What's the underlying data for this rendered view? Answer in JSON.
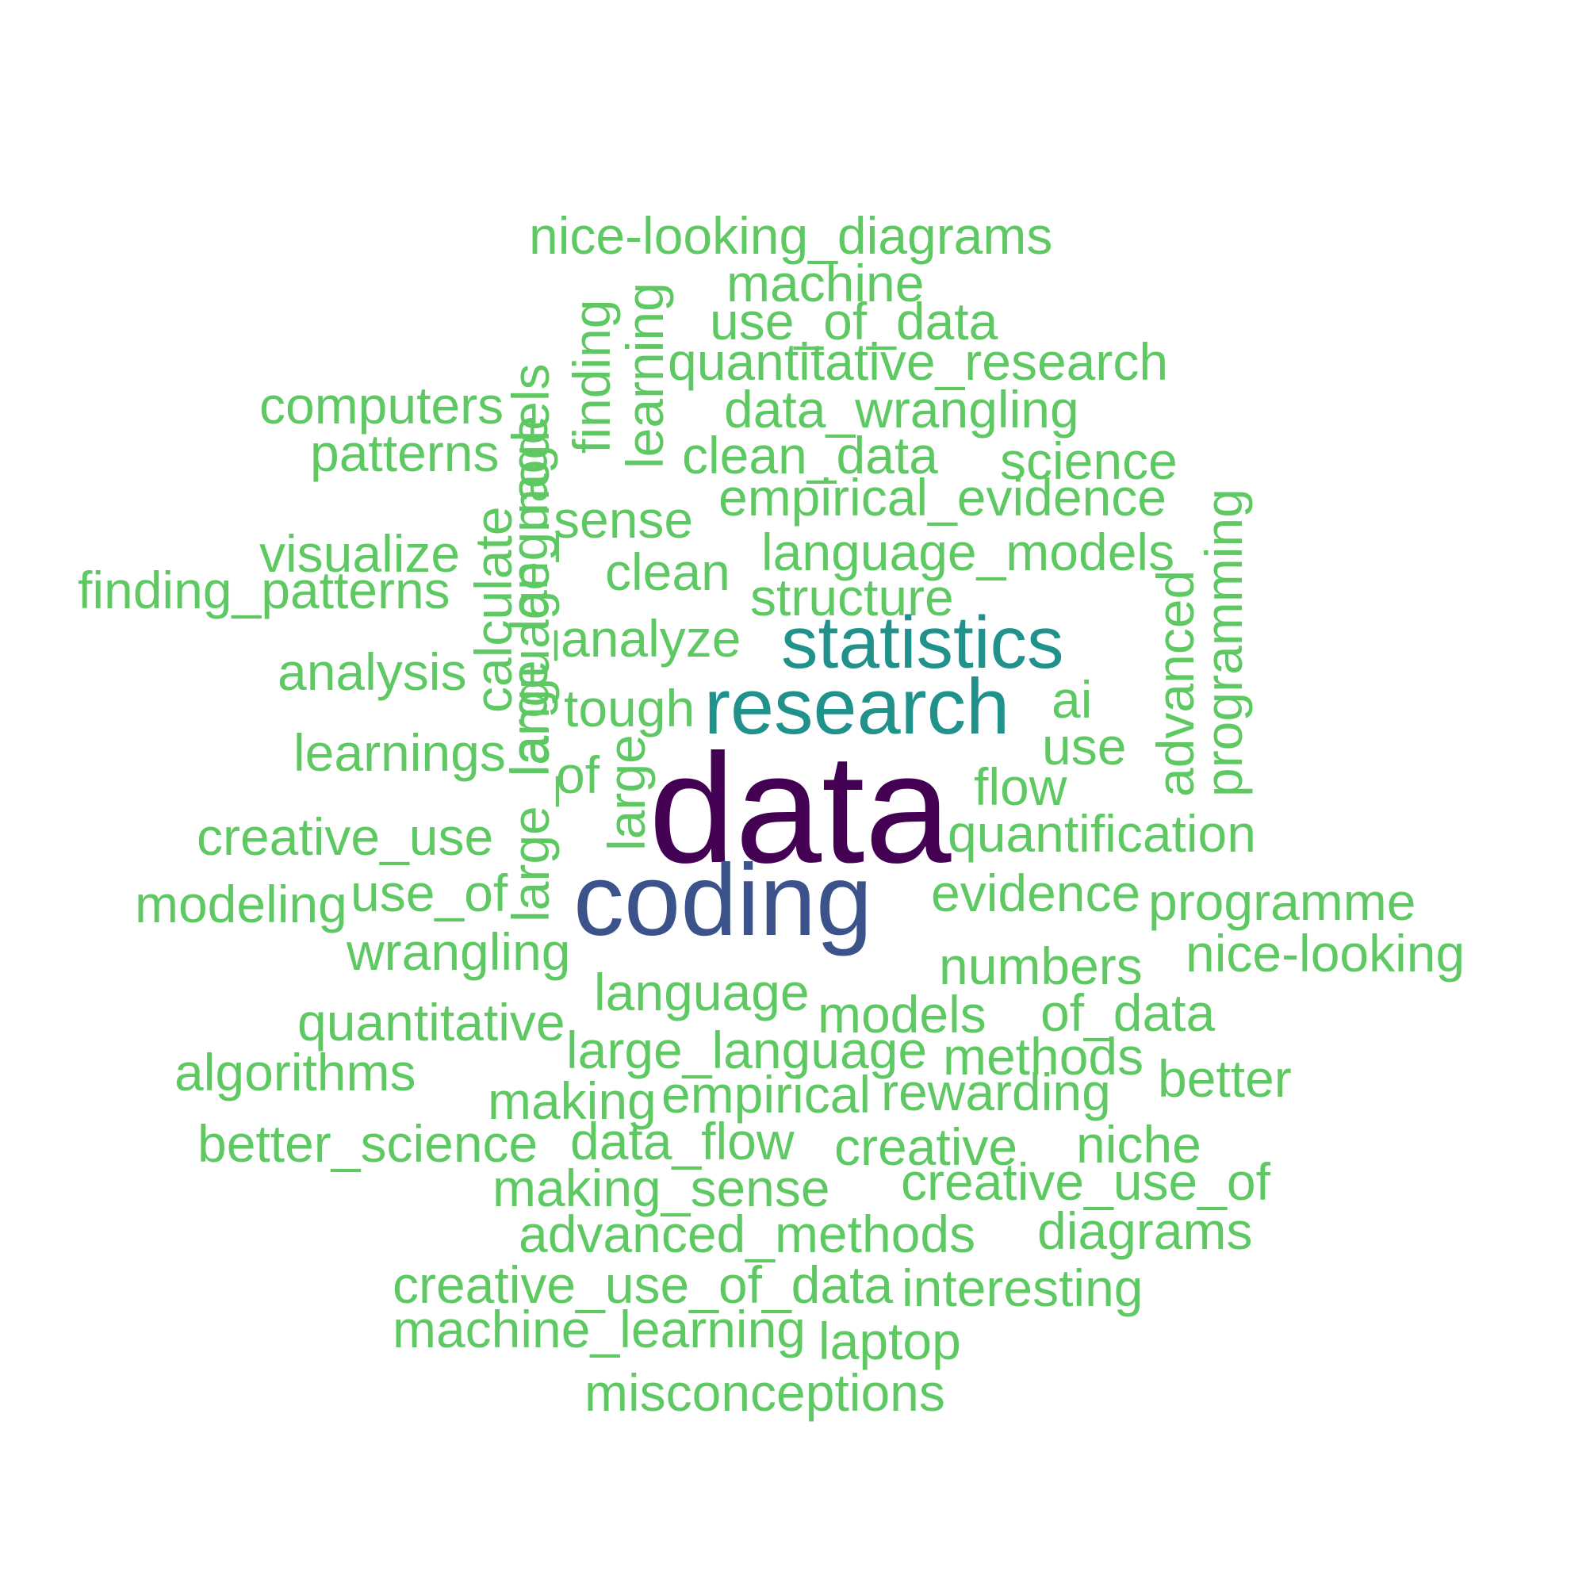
{
  "wordcloud": {
    "colors": {
      "background": "#ffffff",
      "rank1": "#440154",
      "rank2": "#3b528b",
      "rank3": "#21918c",
      "rest": "#5ec962"
    },
    "words": {
      "data": "data",
      "coding": "coding",
      "research": "research",
      "statistics": "statistics",
      "nice_looking_diagrams": "nice-looking_diagrams",
      "machine": "machine",
      "use_of_data": "use_of_data",
      "quantitative_research": "quantitative_research",
      "data_wrangling": "data_wrangling",
      "clean_data": "clean_data",
      "science": "science",
      "empirical_evidence": "empirical_evidence",
      "language_models": "language_models",
      "structure": "structure",
      "computers": "computers",
      "patterns": "patterns",
      "visualize": "visualize",
      "finding_patterns": "finding_patterns",
      "analysis": "analysis",
      "learnings": "learnings",
      "creative_use": "creative_use",
      "modeling": "modeling",
      "use_of": "use_of",
      "wrangling": "wrangling",
      "sense": "sense",
      "clean": "clean",
      "analyze": "analyze",
      "tough": "tough",
      "of": "of",
      "ai": "ai",
      "use": "use",
      "flow": "flow",
      "quantification": "quantification",
      "evidence": "evidence",
      "programme": "programme",
      "nice_looking": "nice-looking",
      "numbers": "numbers",
      "language": "language",
      "models": "models",
      "of_data": "of_data",
      "quantitative": "quantitative",
      "large_language": "large_language",
      "methods": "methods",
      "algorithms": "algorithms",
      "better": "better",
      "making": "making",
      "empirical": "empirical",
      "rewarding": "rewarding",
      "better_science": "better_science",
      "data_flow": "data_flow",
      "creative": "creative",
      "niche": "niche",
      "making_sense": "making_sense",
      "creative_use_of": "creative_use_of",
      "advanced_methods": "advanced_methods",
      "diagrams": "diagrams",
      "creative_use_of_data": "creative_use_of_data",
      "interesting": "interesting",
      "machine_learning": "machine_learning",
      "laptop": "laptop",
      "misconceptions": "misconceptions",
      "finding": "finding",
      "learning": "learning",
      "large_language_models": "large_language_models",
      "calculate": "calculate",
      "large_language_v": "large_language",
      "large": "large",
      "advanced": "advanced",
      "programming": "programming"
    }
  }
}
